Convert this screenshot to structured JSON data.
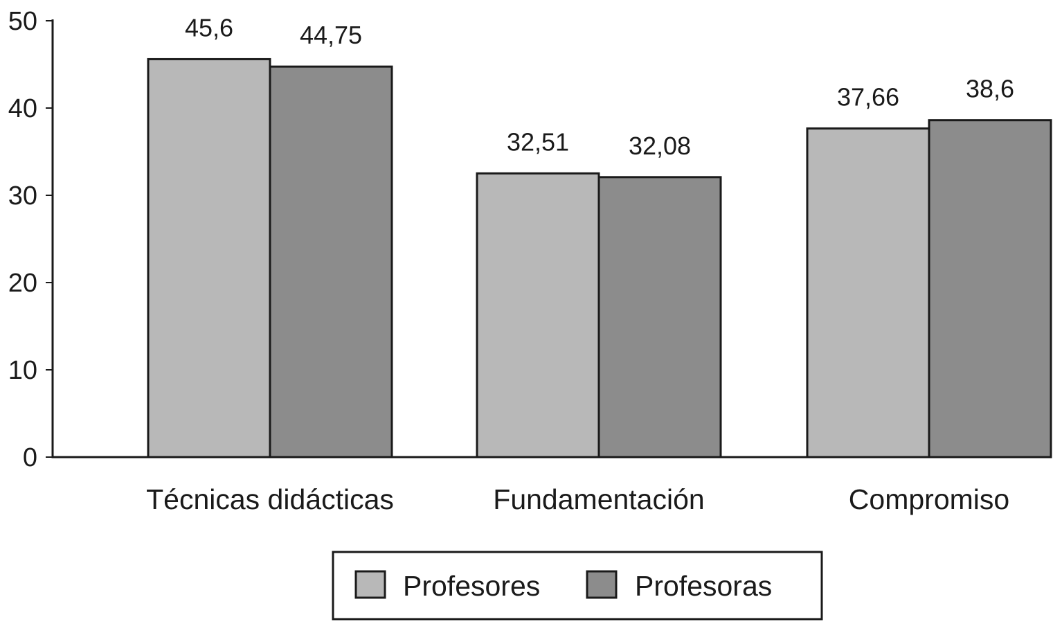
{
  "chart_data": {
    "type": "bar",
    "categories": [
      "Técnicas didácticas",
      "Fundamentación",
      "Compromiso"
    ],
    "series": [
      {
        "name": "Profesores",
        "values": [
          45.6,
          32.51,
          37.66
        ],
        "labels": [
          "45,6",
          "32,51",
          "37,66"
        ],
        "color": "#b8b8b8"
      },
      {
        "name": "Profesoras",
        "values": [
          44.75,
          32.08,
          38.6
        ],
        "labels": [
          "44,75",
          "32,08",
          "38,6"
        ],
        "color": "#8c8c8c"
      }
    ],
    "ylim": [
      0,
      50
    ],
    "yticks": [
      0,
      10,
      20,
      30,
      40,
      50
    ],
    "grid": false,
    "legend": "bottom-center"
  }
}
